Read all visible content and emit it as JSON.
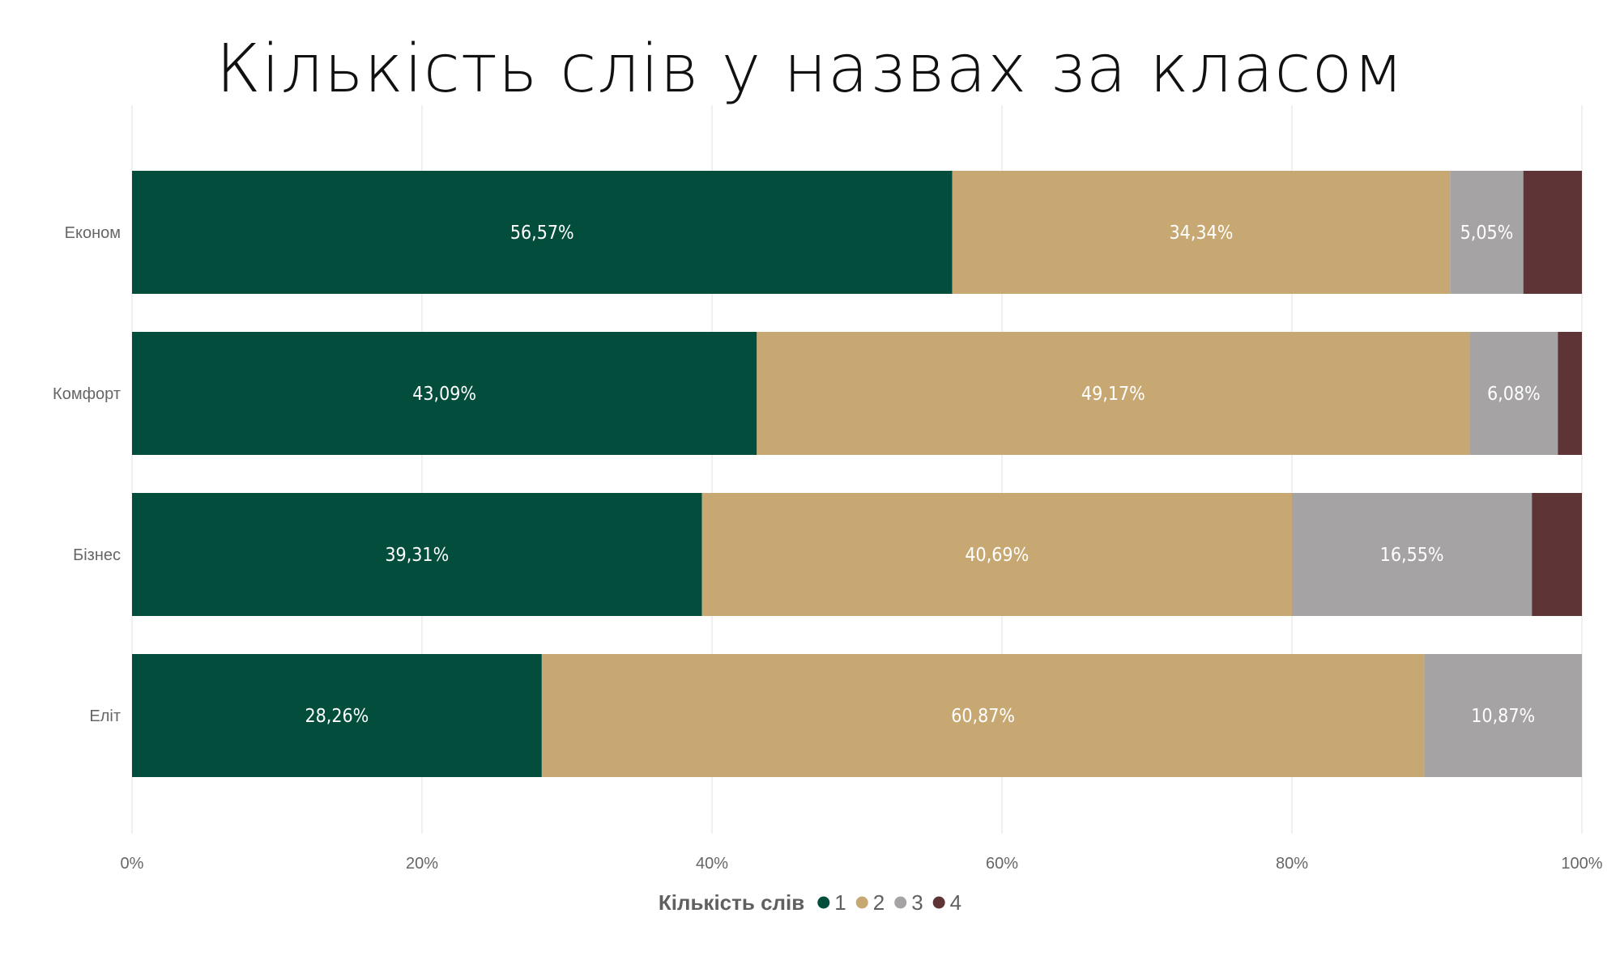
{
  "chart_data": {
    "type": "bar",
    "orientation": "horizontal",
    "stacked": "percent",
    "title": "Кількість слів у назвах за класом",
    "categories": [
      "Економ",
      "Комфорт",
      "Бізнес",
      "Еліт"
    ],
    "series": [
      {
        "name": "1",
        "color": "#034d3c",
        "values": [
          56.57,
          43.09,
          39.31,
          28.26
        ],
        "labels": [
          "56,57%",
          "43,09%",
          "39,31%",
          "28,26%"
        ]
      },
      {
        "name": "2",
        "color": "#c8a872",
        "values": [
          34.34,
          49.17,
          40.69,
          60.87
        ],
        "labels": [
          "34,34%",
          "49,17%",
          "40,69%",
          "60,87%"
        ]
      },
      {
        "name": "3",
        "color": "#a5a3a3",
        "values": [
          5.05,
          6.08,
          16.55,
          10.87
        ],
        "labels": [
          "5,05%",
          "6,08%",
          "16,55%",
          "10,87%"
        ]
      },
      {
        "name": "4",
        "color": "#5f3437",
        "values": [
          4.04,
          1.66,
          3.45,
          0
        ],
        "labels": [
          "",
          "",
          "",
          ""
        ]
      }
    ],
    "xlim": [
      0,
      100
    ],
    "xticks": [
      "0%",
      "20%",
      "40%",
      "60%",
      "80%",
      "100%"
    ],
    "grid": true,
    "legend": {
      "title": "Кількість слів",
      "position": "bottom"
    }
  }
}
